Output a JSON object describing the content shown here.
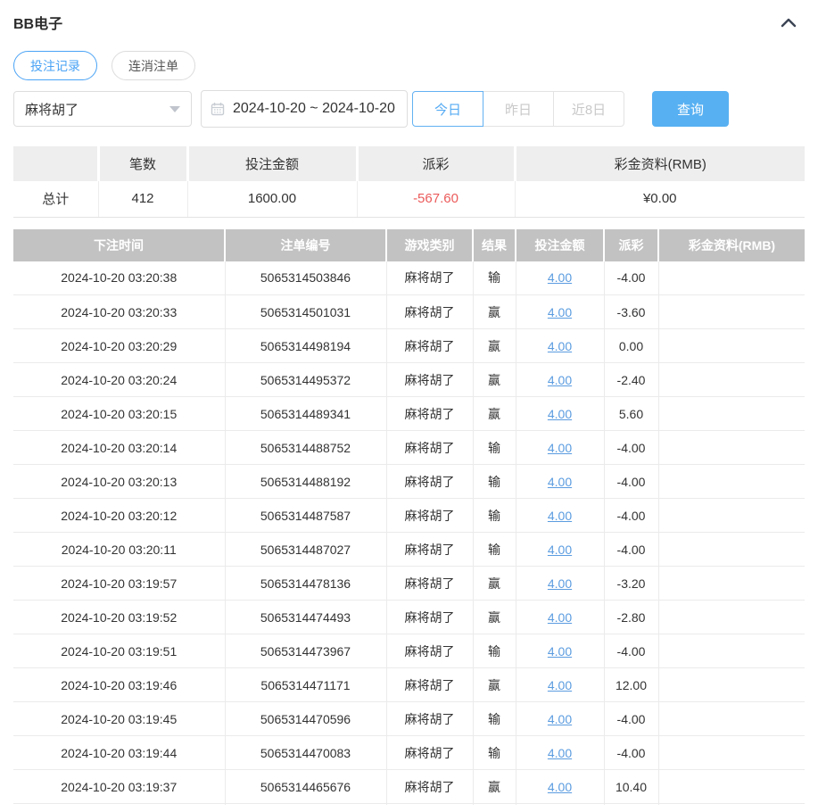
{
  "header": {
    "title": "BB电子"
  },
  "tabs": [
    {
      "label": "投注记录",
      "active": true
    },
    {
      "label": "连消注单",
      "active": false
    }
  ],
  "filters": {
    "game_select": {
      "value": "麻将胡了",
      "icon": "chevron-down-icon"
    },
    "date_range": {
      "value": "2024-10-20 ~ 2024-10-20",
      "icon": "calendar-icon"
    },
    "quick_buttons": [
      {
        "label": "今日",
        "active": true
      },
      {
        "label": "昨日",
        "active": false
      },
      {
        "label": "近8日",
        "active": false
      }
    ],
    "search_button": "查询"
  },
  "summary": {
    "headers": [
      "",
      "笔数",
      "投注金额",
      "派彩",
      "彩金资料(RMB)"
    ],
    "row": {
      "label": "总计",
      "count": "412",
      "bet_amount": "1600.00",
      "payout": "-567.60",
      "bonus": "¥0.00"
    }
  },
  "table": {
    "headers": [
      "下注时间",
      "注单编号",
      "游戏类别",
      "结果",
      "投注金额",
      "派彩",
      "彩金资料(RMB)"
    ],
    "rows": [
      [
        "2024-10-20 03:20:38",
        "5065314503846",
        "麻将胡了",
        "输",
        "4.00",
        "-4.00",
        ""
      ],
      [
        "2024-10-20 03:20:33",
        "5065314501031",
        "麻将胡了",
        "赢",
        "4.00",
        "-3.60",
        ""
      ],
      [
        "2024-10-20 03:20:29",
        "5065314498194",
        "麻将胡了",
        "赢",
        "4.00",
        "0.00",
        ""
      ],
      [
        "2024-10-20 03:20:24",
        "5065314495372",
        "麻将胡了",
        "赢",
        "4.00",
        "-2.40",
        ""
      ],
      [
        "2024-10-20 03:20:15",
        "5065314489341",
        "麻将胡了",
        "赢",
        "4.00",
        "5.60",
        ""
      ],
      [
        "2024-10-20 03:20:14",
        "5065314488752",
        "麻将胡了",
        "输",
        "4.00",
        "-4.00",
        ""
      ],
      [
        "2024-10-20 03:20:13",
        "5065314488192",
        "麻将胡了",
        "输",
        "4.00",
        "-4.00",
        ""
      ],
      [
        "2024-10-20 03:20:12",
        "5065314487587",
        "麻将胡了",
        "输",
        "4.00",
        "-4.00",
        ""
      ],
      [
        "2024-10-20 03:20:11",
        "5065314487027",
        "麻将胡了",
        "输",
        "4.00",
        "-4.00",
        ""
      ],
      [
        "2024-10-20 03:19:57",
        "5065314478136",
        "麻将胡了",
        "赢",
        "4.00",
        "-3.20",
        ""
      ],
      [
        "2024-10-20 03:19:52",
        "5065314474493",
        "麻将胡了",
        "赢",
        "4.00",
        "-2.80",
        ""
      ],
      [
        "2024-10-20 03:19:51",
        "5065314473967",
        "麻将胡了",
        "输",
        "4.00",
        "-4.00",
        ""
      ],
      [
        "2024-10-20 03:19:46",
        "5065314471171",
        "麻将胡了",
        "赢",
        "4.00",
        "12.00",
        ""
      ],
      [
        "2024-10-20 03:19:45",
        "5065314470596",
        "麻将胡了",
        "输",
        "4.00",
        "-4.00",
        ""
      ],
      [
        "2024-10-20 03:19:44",
        "5065314470083",
        "麻将胡了",
        "输",
        "4.00",
        "-4.00",
        ""
      ],
      [
        "2024-10-20 03:19:37",
        "5065314465676",
        "麻将胡了",
        "赢",
        "4.00",
        "10.40",
        ""
      ]
    ]
  },
  "colors": {
    "accent_blue": "#4aa3f5",
    "button_blue": "#57b0f2",
    "link_blue": "#5b9ce0",
    "negative_red": "#ec5b5b",
    "table_header_gray": "#c2c2c2",
    "summary_header_gray": "#eeeeee"
  }
}
